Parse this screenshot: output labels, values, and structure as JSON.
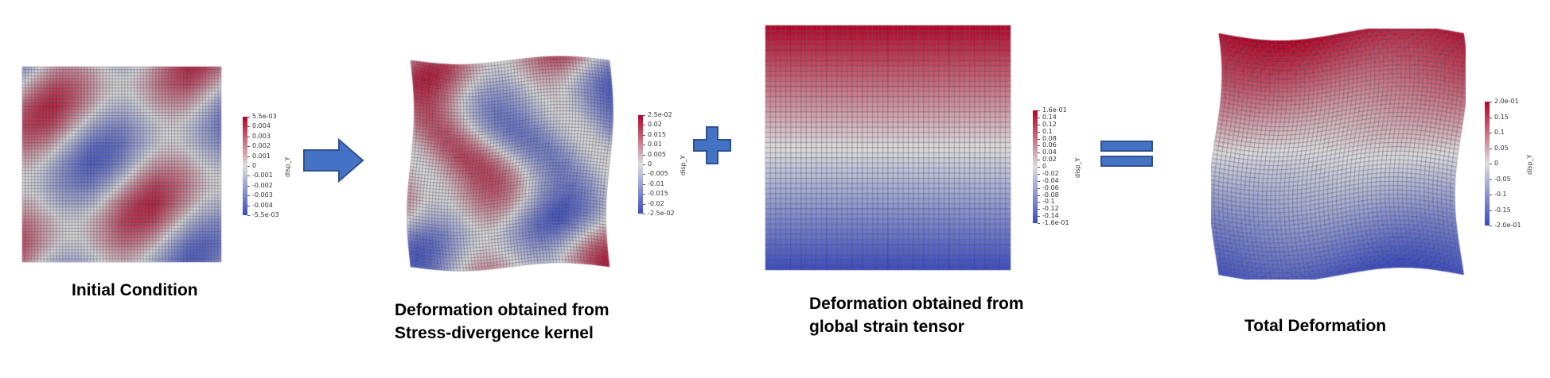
{
  "colors": {
    "cool": "#3b4cc0",
    "neutral": "#dddddd",
    "warm": "#b40426",
    "mesh_line": "#3a3a4a",
    "operator_fill": "#4472c4",
    "operator_stroke": "#2f528f"
  },
  "operators": [
    {
      "name": "arrow-right-icon"
    },
    {
      "name": "plus-icon"
    },
    {
      "name": "equals-icon"
    }
  ],
  "panels": [
    {
      "id": "initial",
      "caption_lines": [
        "Initial Condition"
      ],
      "colorbar": {
        "title": "disp_Y",
        "ticks": [
          "5.5e-03",
          "0.004",
          "0.003",
          "0.002",
          "0.001",
          "0",
          "-0.001",
          "-0.002",
          "-0.003",
          "-0.004",
          "-5.5e-03"
        ]
      }
    },
    {
      "id": "stress",
      "caption_lines": [
        "Deformation obtained from",
        "Stress-divergence kernel"
      ],
      "colorbar": {
        "title": "disp_Y",
        "ticks": [
          "2.5e-02",
          "0.02",
          "0.015",
          "0.01",
          "0.005",
          "0",
          "-0.005",
          "-0.01",
          "-0.015",
          "-0.02",
          "-2.5e-02"
        ]
      }
    },
    {
      "id": "global",
      "caption_lines": [
        "Deformation obtained from",
        "global strain tensor"
      ],
      "colorbar": {
        "title": "disp_Y",
        "ticks": [
          "1.6e-01",
          "0.14",
          "0.12",
          "0.1",
          "0.08",
          "0.06",
          "0.04",
          "0.02",
          "0",
          "-0.02",
          "-0.04",
          "-0.06",
          "-0.08",
          "-0.1",
          "-0.12",
          "-0.14",
          "-1.6e-01"
        ]
      }
    },
    {
      "id": "total",
      "caption_lines": [
        "Total Deformation"
      ],
      "colorbar": {
        "title": "disp_Y",
        "ticks": [
          "2.0e-01",
          "0.15",
          "0.1",
          "0.05",
          "0",
          "-0.05",
          "-0.1",
          "-0.15",
          "-2.0e-01"
        ]
      }
    }
  ]
}
